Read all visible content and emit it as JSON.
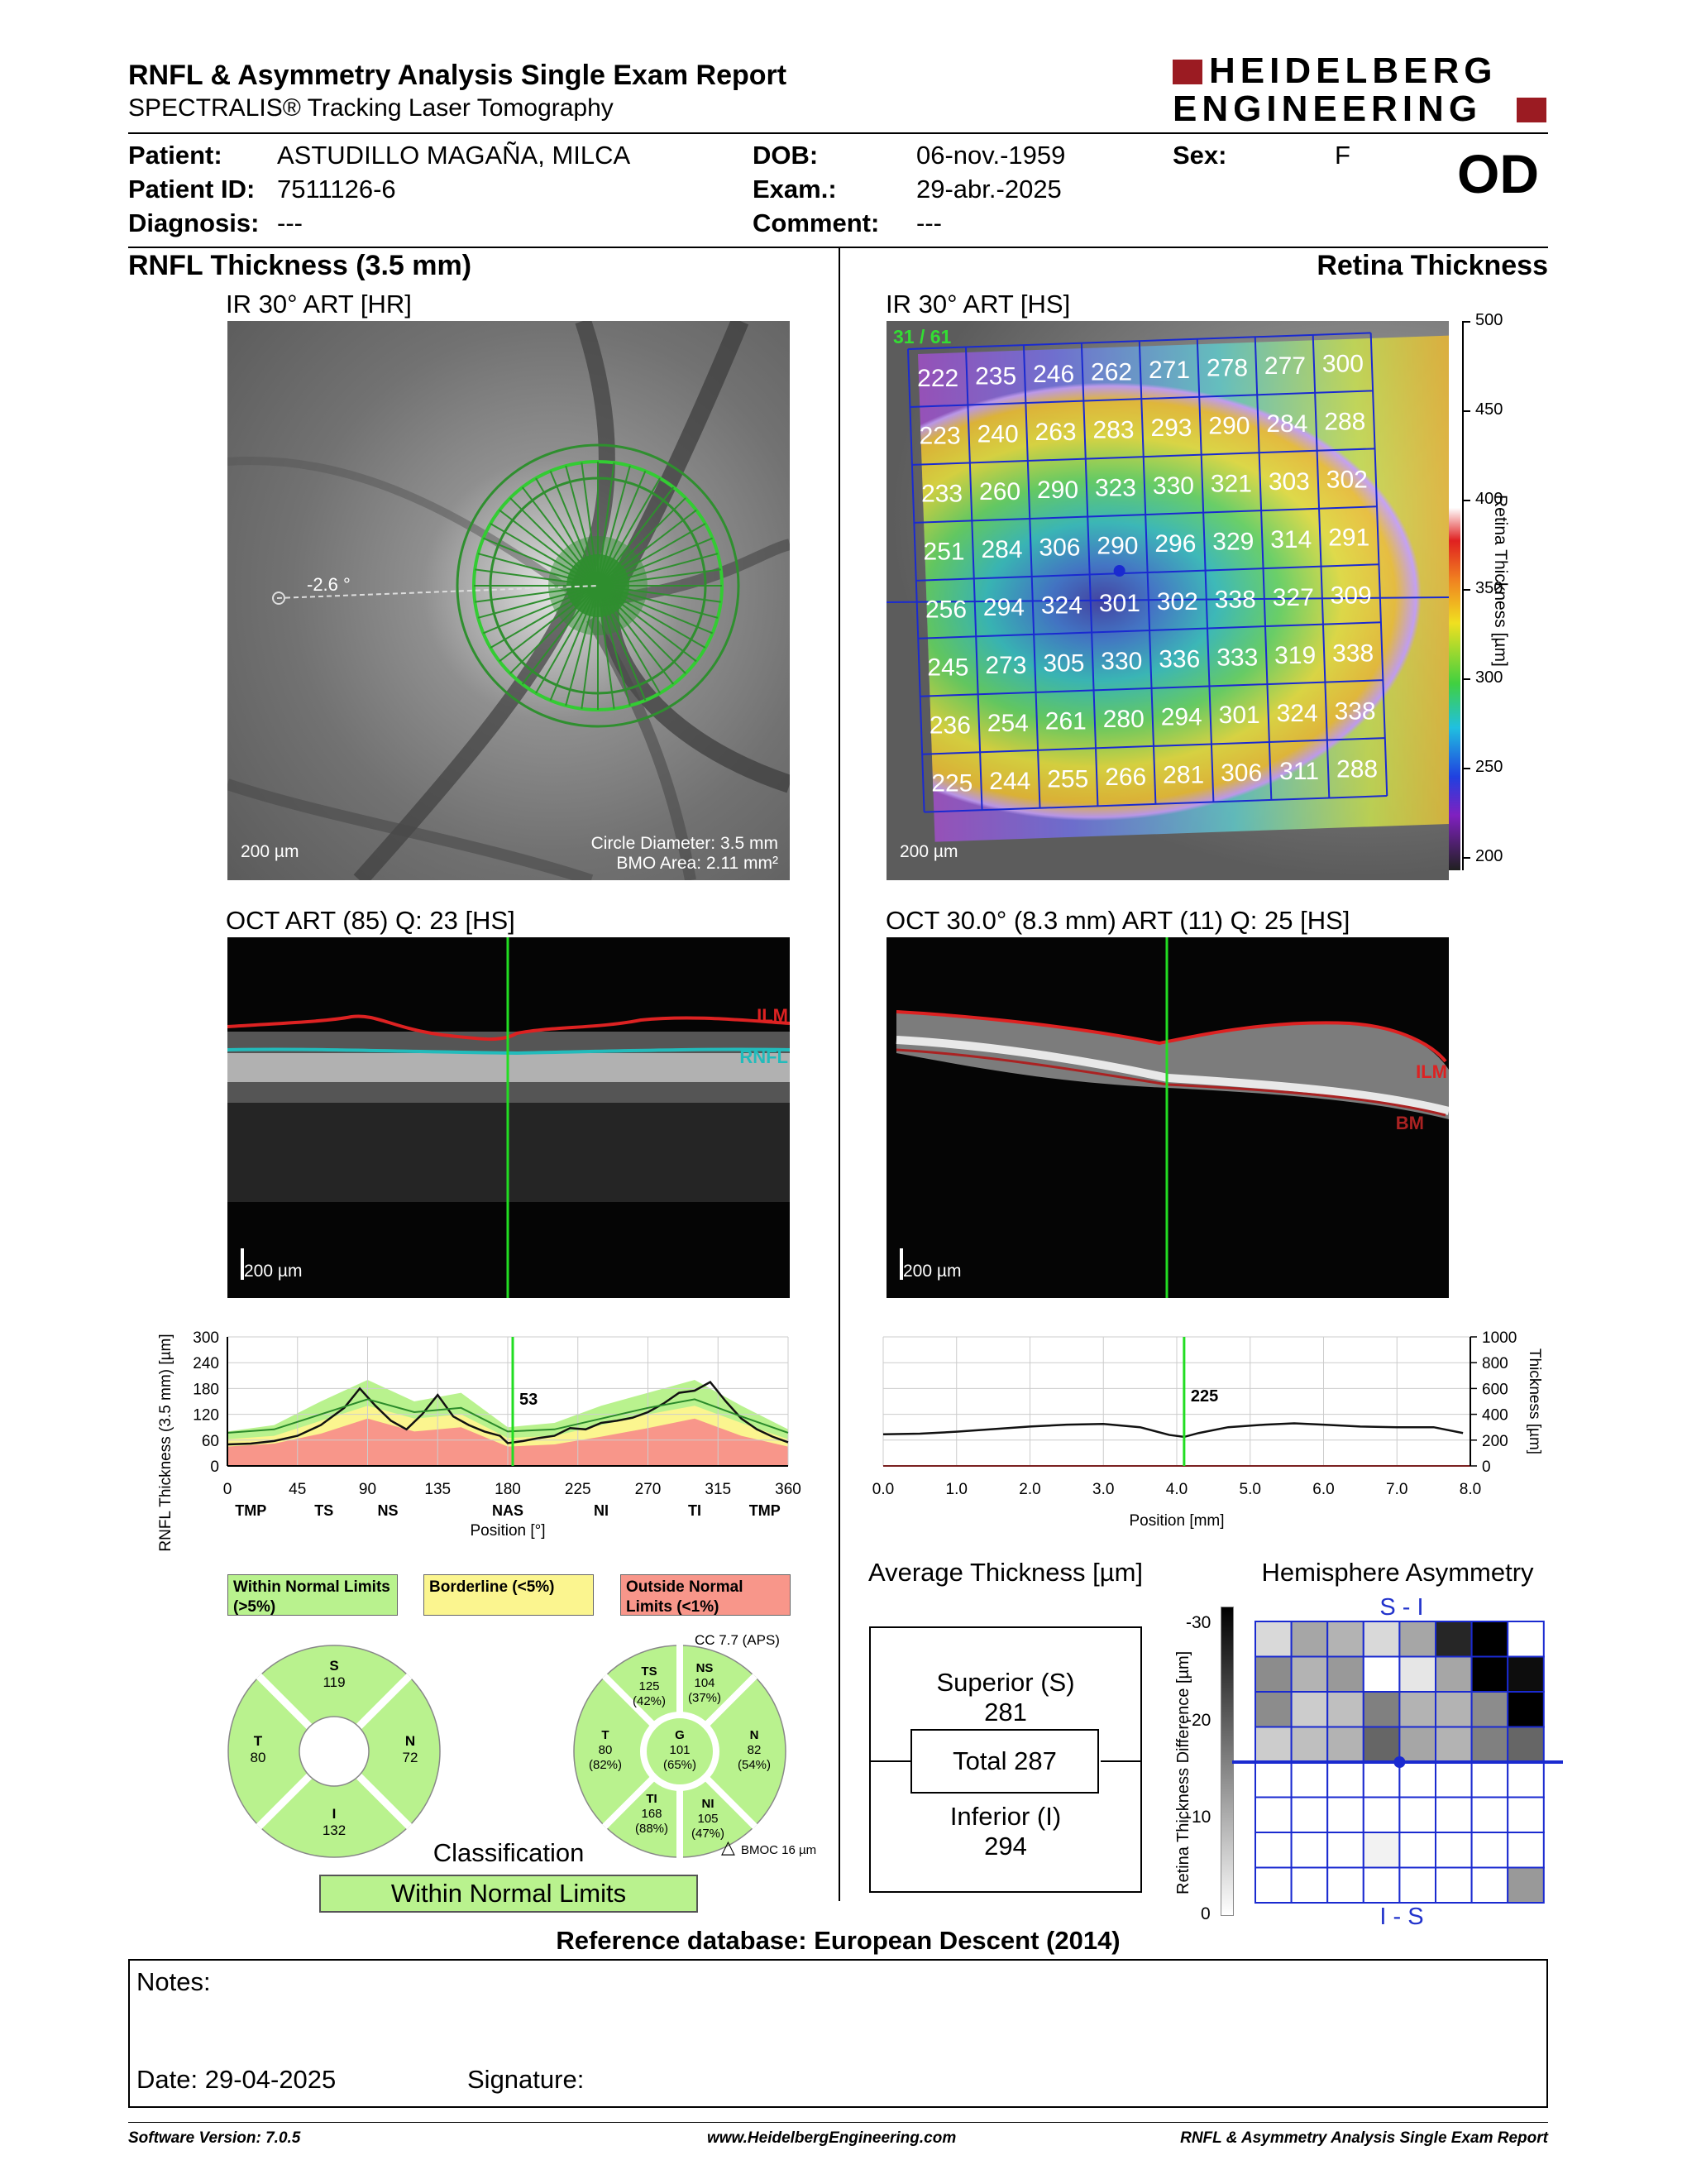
{
  "report": {
    "title": "RNFL & Asymmetry Analysis Single Exam Report",
    "subtitle": "SPECTRALIS® Tracking Laser Tomography",
    "brand_line1": "HEIDELBERG",
    "brand_line2": "ENGINEERING",
    "eye": "OD"
  },
  "patient": {
    "patient_label": "Patient:",
    "patient_value": "ASTUDILLO MAGAÑA, MILCA",
    "id_label": "Patient ID:",
    "id_value": "7511126-6",
    "diag_label": "Diagnosis:",
    "diag_value": "---",
    "dob_label": "DOB:",
    "dob_value": "06-nov.-1959",
    "exam_label": "Exam.:",
    "exam_value": "29-abr.-2025",
    "comment_label": "Comment:",
    "comment_value": "---",
    "sex_label": "Sex:",
    "sex_value": "F"
  },
  "left": {
    "section_title": "RNFL Thickness (3.5 mm)",
    "ir_caption": "IR 30° ART [HR]",
    "ir_angle": "-2.6 °",
    "ir_scale": "200 µm",
    "circle_diameter": "Circle Diameter: 3.5 mm",
    "bmo_area": "BMO Area: 2.11 mm²",
    "oct_caption": "OCT ART (85) Q: 23 [HS]",
    "oct_scale": "200 µm",
    "oct_ilm": "ILM",
    "oct_rnfl": "RNFL"
  },
  "right": {
    "section_title": "Retina Thickness",
    "ir_caption": "IR 30° ART [HS]",
    "ir_frame": "31 / 61",
    "ir_scale": "200 µm",
    "colorbar_label": "Retina Thickness [µm]",
    "colorbar_ticks": [
      "500",
      "450",
      "400",
      "350",
      "300",
      "250",
      "200"
    ],
    "oct_caption": "OCT 30.0° (8.3 mm) ART (11) Q: 25 [HS]",
    "oct_scale": "200 µm",
    "oct_ilm": "ILM",
    "oct_bm": "BM"
  },
  "thickness_grid": [
    [
      222,
      235,
      246,
      262,
      271,
      278,
      277,
      300
    ],
    [
      223,
      240,
      263,
      283,
      293,
      290,
      284,
      288
    ],
    [
      233,
      260,
      290,
      323,
      330,
      321,
      303,
      302
    ],
    [
      251,
      284,
      306,
      290,
      296,
      329,
      314,
      291
    ],
    [
      256,
      294,
      324,
      301,
      302,
      338,
      327,
      309
    ],
    [
      245,
      273,
      305,
      330,
      336,
      333,
      319,
      338
    ],
    [
      236,
      254,
      261,
      280,
      294,
      301,
      324,
      338
    ],
    [
      225,
      244,
      255,
      266,
      281,
      306,
      311,
      288
    ]
  ],
  "chart_data": [
    {
      "type": "line",
      "title": "",
      "ylabel": "RNFL Thickness (3.5 mm) [µm]",
      "xlabel": "Position [°]",
      "ylim": [
        0,
        300
      ],
      "xlim": [
        0,
        360
      ],
      "yticks": [
        "300",
        "240",
        "180",
        "120",
        "60",
        "0"
      ],
      "xticks": [
        "0",
        "45",
        "90",
        "135",
        "180",
        "225",
        "270",
        "315",
        "360"
      ],
      "sector_labels": [
        "TMP",
        "TS",
        "NS",
        "NAS",
        "NI",
        "TI",
        "TMP"
      ],
      "cursor_value": "53",
      "cursor_x": 180,
      "series": [
        {
          "name": "",
          "x": [
            0,
            15,
            30,
            45,
            60,
            75,
            85,
            95,
            105,
            115,
            125,
            135,
            145,
            155,
            165,
            175,
            180,
            190,
            200,
            210,
            220,
            230,
            240,
            250,
            260,
            270,
            280,
            290,
            300,
            310,
            320,
            330,
            340,
            350,
            360
          ],
          "values": [
            50,
            52,
            58,
            70,
            95,
            135,
            180,
            140,
            105,
            85,
            120,
            165,
            115,
            95,
            80,
            70,
            53,
            58,
            65,
            70,
            88,
            85,
            100,
            105,
            112,
            125,
            145,
            170,
            175,
            195,
            150,
            110,
            85,
            68,
            55
          ]
        }
      ]
    },
    {
      "type": "line",
      "title": "",
      "ylabel": "Thickness [µm]",
      "xlabel": "Position [mm]",
      "ylim": [
        0,
        1000
      ],
      "xlim": [
        0,
        8
      ],
      "yticks": [
        "1000",
        "800",
        "600",
        "400",
        "200",
        "0"
      ],
      "xticks": [
        "0.0",
        "1.0",
        "2.0",
        "3.0",
        "4.0",
        "5.0",
        "6.0",
        "7.0",
        "8.0"
      ],
      "cursor_value": "225",
      "cursor_x": 4.1,
      "series": [
        {
          "name": "",
          "x": [
            0,
            0.5,
            1,
            1.5,
            2,
            2.5,
            3,
            3.5,
            3.9,
            4.1,
            4.3,
            4.7,
            5.2,
            5.6,
            6,
            6.5,
            7,
            7.5,
            7.9
          ],
          "values": [
            245,
            250,
            265,
            285,
            305,
            320,
            325,
            300,
            240,
            225,
            255,
            300,
            320,
            330,
            320,
            305,
            300,
            300,
            255
          ]
        }
      ]
    }
  ],
  "rnfl_legend": {
    "wnl": "Within Normal Limits (>5%)",
    "borderline": "Borderline (<5%)",
    "onl": "Outside Normal Limits (<1%)"
  },
  "quadrants": {
    "S": "119",
    "N": "72",
    "I": "132",
    "T": "80",
    "S_label": "S",
    "N_label": "N",
    "I_label": "I",
    "T_label": "T"
  },
  "sectors": {
    "cc": "CC 7.7 (APS)",
    "TS": [
      "TS",
      "125",
      "(42%)"
    ],
    "NS": [
      "NS",
      "104",
      "(37%)"
    ],
    "T": [
      "T",
      "80",
      "(82%)"
    ],
    "G": [
      "G",
      "101",
      "(65%)"
    ],
    "N": [
      "N",
      "82",
      "(54%)"
    ],
    "TI": [
      "TI",
      "168",
      "(88%)"
    ],
    "NI": [
      "NI",
      "105",
      "(47%)"
    ],
    "bmoc": "BMOC 16 µm"
  },
  "classification": {
    "label": "Classification",
    "value": "Within Normal Limits"
  },
  "average_thickness": {
    "title": "Average Thickness [µm]",
    "superior_label": "Superior (S)",
    "superior_value": "281",
    "total": "Total 287",
    "inferior_label": "Inferior (I)",
    "inferior_value": "294"
  },
  "hemisphere": {
    "title": "Hemisphere Asymmetry",
    "top_label": "S - I",
    "bottom_label": "I - S",
    "scale_label": "Retina Thickness Difference [µm]",
    "scale_ticks": [
      "-30",
      "-20",
      "-10",
      "0"
    ],
    "grid": [
      [
        0.15,
        0.35,
        0.3,
        0.15,
        0.35,
        0.85,
        1.0,
        0.0
      ],
      [
        0.45,
        0.3,
        0.4,
        0.0,
        0.1,
        0.35,
        1.0,
        0.95
      ],
      [
        0.45,
        0.2,
        0.25,
        0.5,
        0.3,
        0.3,
        0.45,
        1.0
      ],
      [
        0.2,
        0.25,
        0.3,
        0.6,
        0.35,
        0.3,
        0.5,
        0.6
      ],
      [
        0,
        0,
        0,
        0,
        0,
        0,
        0,
        0
      ],
      [
        0,
        0,
        0,
        0,
        0,
        0,
        0,
        0
      ],
      [
        0,
        0,
        0,
        0.05,
        0,
        0,
        0,
        0
      ],
      [
        0,
        0,
        0,
        0,
        0,
        0,
        0,
        0.4
      ]
    ]
  },
  "reference_db": "Reference database: European Descent (2014)",
  "notes": {
    "notes_label": "Notes:",
    "date_label": "Date: 29-04-2025",
    "signature_label": "Signature:"
  },
  "footer": {
    "software": "Software Version: 7.0.5",
    "website": "www.HeidelbergEngineering.com",
    "report_name": "RNFL & Asymmetry Analysis Single Exam Report"
  }
}
